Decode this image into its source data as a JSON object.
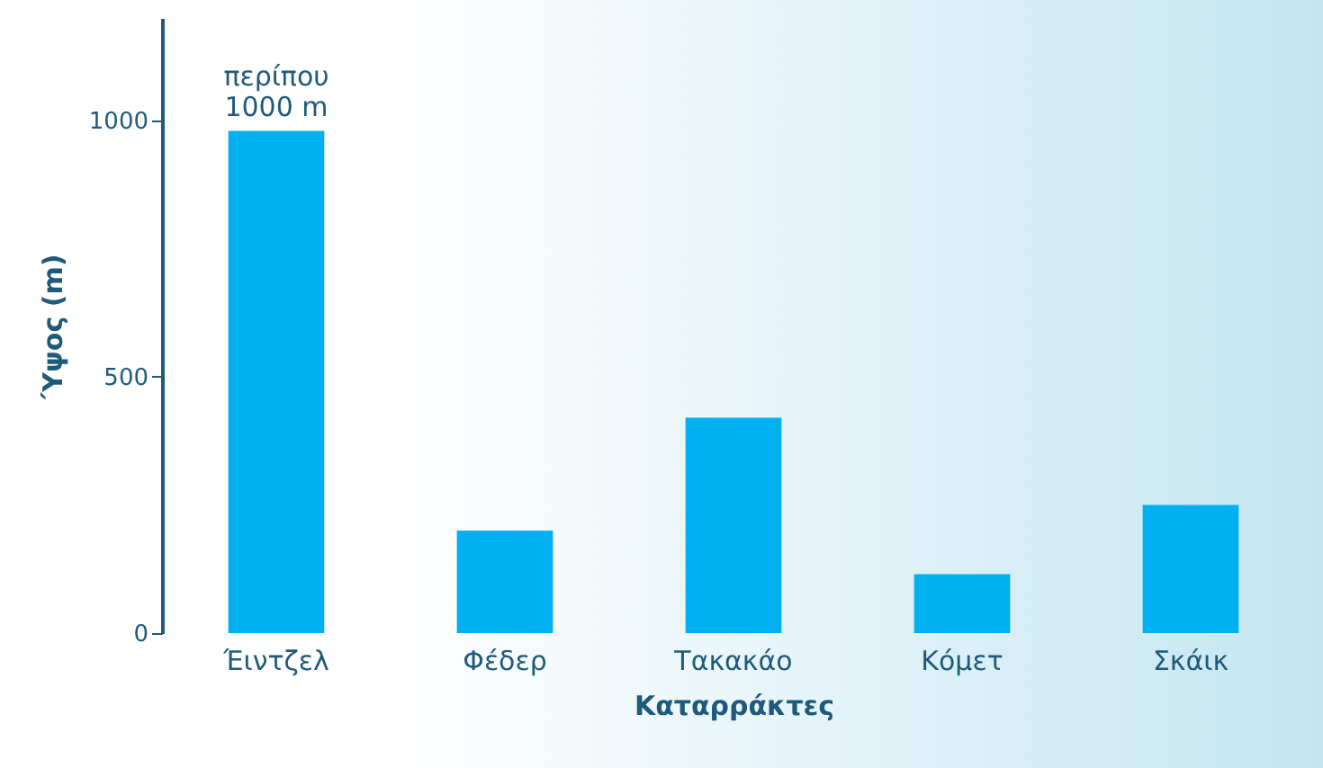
{
  "chart_data": {
    "type": "bar",
    "xlabel": "Καταρράκτες",
    "ylabel": "Ύψος (m)",
    "categories": [
      "Έιντζελ",
      "Φέδερ",
      "Τακακάο",
      "Κόμετ",
      "Σκάικ"
    ],
    "values": [
      980,
      200,
      420,
      115,
      250
    ],
    "color": "#00b0f0",
    "ylim": [
      0,
      1200
    ],
    "yticks": [
      0,
      500,
      1000
    ],
    "grid": false,
    "annotations": [
      {
        "text": "περίπου\n1000 m",
        "x": "Έιντζελ",
        "y": 980
      }
    ]
  }
}
